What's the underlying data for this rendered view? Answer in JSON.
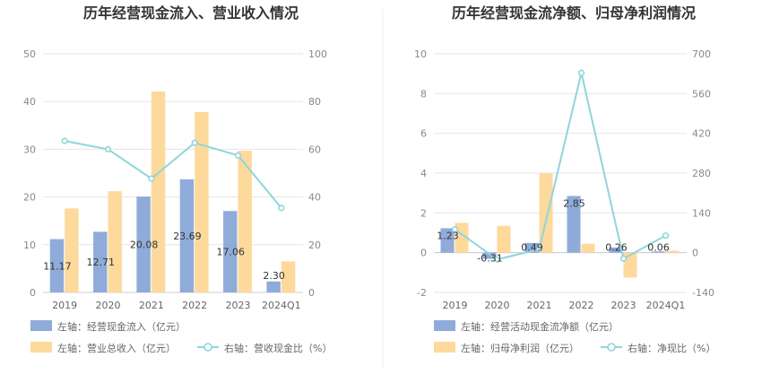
{
  "colors": {
    "bar1": "#8fabd9",
    "bar2": "#fdd99b",
    "line": "#8fd5dc"
  },
  "chart_data": [
    {
      "type": "bar",
      "title": "历年经营现金流入、营业收入情况",
      "categories": [
        "2019",
        "2020",
        "2021",
        "2022",
        "2023",
        "2024Q1"
      ],
      "left_axis": {
        "min": 0,
        "max": 50,
        "ticks": [
          "0",
          "10",
          "20",
          "30",
          "40",
          "50"
        ]
      },
      "right_axis": {
        "min": 0,
        "max": 100,
        "ticks": [
          "0",
          "20",
          "40",
          "60",
          "80",
          "100"
        ]
      },
      "series": [
        {
          "name": "左轴：经营现金流入（亿元）",
          "type": "bar",
          "axis": "left",
          "values": [
            11.17,
            12.71,
            20.08,
            23.69,
            17.06,
            2.3
          ],
          "labels": [
            "11.17",
            "12.71",
            "20.08",
            "23.69",
            "17.06",
            "2.30"
          ]
        },
        {
          "name": "左轴：营业总收入（亿元）",
          "type": "bar",
          "axis": "left",
          "values": [
            17.6,
            21.2,
            42.1,
            37.8,
            29.7,
            6.5
          ]
        },
        {
          "name": "右轴：营收现金比（%）",
          "type": "line",
          "axis": "right",
          "values": [
            63.5,
            60.0,
            47.7,
            62.7,
            57.4,
            35.4
          ]
        }
      ],
      "legend_position": "bottom"
    },
    {
      "type": "bar",
      "title": "历年经营现金流净额、归母净利润情况",
      "categories": [
        "2019",
        "2020",
        "2021",
        "2022",
        "2023",
        "2024Q1"
      ],
      "left_axis": {
        "min": -2,
        "max": 10,
        "ticks": [
          "-2",
          "0",
          "2",
          "4",
          "6",
          "8",
          "10"
        ]
      },
      "right_axis": {
        "min": -140,
        "max": 700,
        "ticks": [
          "-140",
          "0",
          "140",
          "280",
          "420",
          "560",
          "700"
        ]
      },
      "series": [
        {
          "name": "左轴：经营活动现金流净额（亿元）",
          "type": "bar",
          "axis": "left",
          "values": [
            1.23,
            -0.31,
            0.49,
            2.85,
            0.26,
            0.06
          ],
          "labels": [
            "1.23",
            "-0.31",
            "0.49",
            "2.85",
            "0.26",
            "0.06"
          ]
        },
        {
          "name": "左轴：归母净利润（亿元）",
          "type": "bar",
          "axis": "left",
          "values": [
            1.5,
            1.35,
            4.0,
            0.45,
            -1.25,
            0.1
          ]
        },
        {
          "name": "右轴：净现比（%）",
          "type": "line",
          "axis": "right",
          "values": [
            82,
            -24,
            12,
            633,
            -21,
            60
          ]
        }
      ],
      "legend_position": "bottom"
    }
  ]
}
